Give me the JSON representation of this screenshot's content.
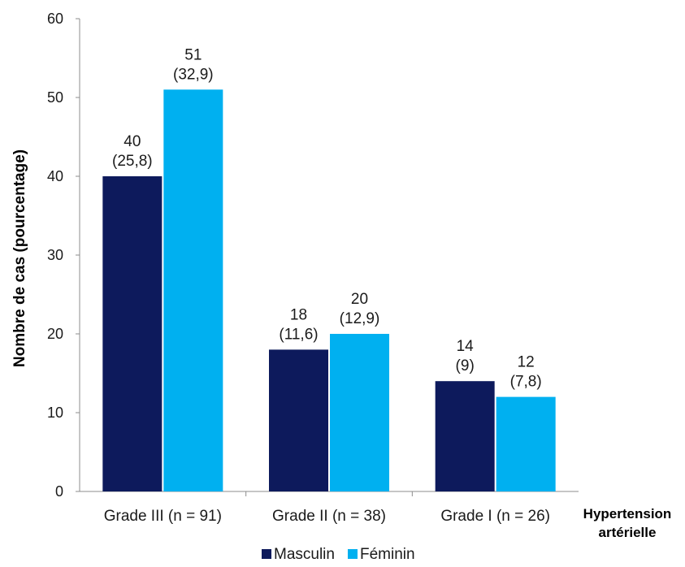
{
  "chart_data": {
    "type": "bar",
    "categories": [
      "Grade III (n = 91)",
      "Grade II (n = 38)",
      "Grade I (n = 26)"
    ],
    "series": [
      {
        "name": "Masculin",
        "values": [
          40,
          18,
          14
        ],
        "labels": [
          "25,8",
          "11,6",
          "9"
        ],
        "color": "#0d1a5c"
      },
      {
        "name": "Féminin",
        "values": [
          51,
          20,
          12
        ],
        "labels": [
          "32,9",
          "12,9",
          "7,8"
        ],
        "color": "#00b0f0"
      }
    ],
    "ylabel": "Nombre de cas (pourcentage)",
    "xlabel_lines": [
      "Hypertension",
      "artérielle"
    ],
    "ylim": [
      0,
      60
    ],
    "yticks": [
      0,
      10,
      20,
      30,
      40,
      50,
      60
    ],
    "grid": false,
    "legend_position": "bottom"
  }
}
